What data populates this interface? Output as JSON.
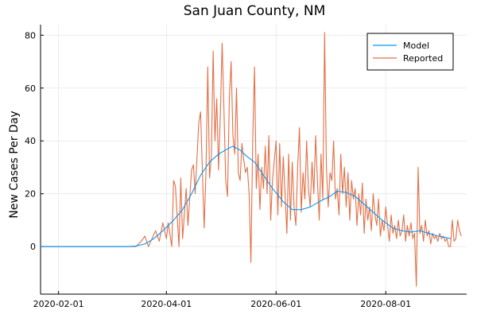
{
  "chart_data": {
    "type": "line",
    "title": "San Juan County, NM",
    "xlabel": "",
    "ylabel": "New Cases Per Day",
    "xlim": [
      "2020-01-22",
      "2020-09-15"
    ],
    "ylim": [
      -18,
      84
    ],
    "x_ticks": [
      "2020-02-01",
      "2020-04-01",
      "2020-06-01",
      "2020-08-01"
    ],
    "y_ticks": [
      0,
      20,
      40,
      60,
      80
    ],
    "grid": true,
    "legend_position": "top-right",
    "series": [
      {
        "name": "Model",
        "color": "#009AFA",
        "points": [
          [
            "2020-01-22",
            0
          ],
          [
            "2020-02-15",
            0
          ],
          [
            "2020-03-10",
            0
          ],
          [
            "2020-03-15",
            0.2
          ],
          [
            "2020-03-20",
            1
          ],
          [
            "2020-03-25",
            3
          ],
          [
            "2020-03-30",
            6
          ],
          [
            "2020-04-05",
            10
          ],
          [
            "2020-04-10",
            14
          ],
          [
            "2020-04-15",
            20
          ],
          [
            "2020-04-20",
            27
          ],
          [
            "2020-04-25",
            32
          ],
          [
            "2020-04-30",
            35
          ],
          [
            "2020-05-05",
            37
          ],
          [
            "2020-05-08",
            38
          ],
          [
            "2020-05-12",
            36.5
          ],
          [
            "2020-05-16",
            34
          ],
          [
            "2020-05-20",
            32
          ],
          [
            "2020-05-25",
            27
          ],
          [
            "2020-05-30",
            22
          ],
          [
            "2020-06-05",
            17
          ],
          [
            "2020-06-10",
            14
          ],
          [
            "2020-06-15",
            14
          ],
          [
            "2020-06-20",
            15
          ],
          [
            "2020-06-25",
            17
          ],
          [
            "2020-07-01",
            19
          ],
          [
            "2020-07-05",
            21
          ],
          [
            "2020-07-10",
            20.5
          ],
          [
            "2020-07-15",
            19
          ],
          [
            "2020-07-20",
            16
          ],
          [
            "2020-07-25",
            13
          ],
          [
            "2020-07-30",
            10
          ],
          [
            "2020-08-05",
            7
          ],
          [
            "2020-08-10",
            6
          ],
          [
            "2020-08-15",
            5.5
          ],
          [
            "2020-08-20",
            6
          ],
          [
            "2020-08-25",
            5
          ],
          [
            "2020-08-30",
            4
          ],
          [
            "2020-09-03",
            3.5
          ],
          [
            "2020-09-06",
            3
          ]
        ]
      },
      {
        "name": "Reported",
        "color": "#E26F46",
        "points": [
          [
            "2020-01-22",
            0
          ],
          [
            "2020-03-15",
            0
          ],
          [
            "2020-03-18",
            2
          ],
          [
            "2020-03-20",
            4
          ],
          [
            "2020-03-22",
            0
          ],
          [
            "2020-03-24",
            3
          ],
          [
            "2020-03-26",
            6
          ],
          [
            "2020-03-28",
            2
          ],
          [
            "2020-03-30",
            9
          ],
          [
            "2020-04-01",
            3
          ],
          [
            "2020-04-02",
            9
          ],
          [
            "2020-04-04",
            0
          ],
          [
            "2020-04-05",
            25
          ],
          [
            "2020-04-06",
            23
          ],
          [
            "2020-04-08",
            0
          ],
          [
            "2020-04-09",
            26
          ],
          [
            "2020-04-10",
            3
          ],
          [
            "2020-04-12",
            22
          ],
          [
            "2020-04-13",
            8
          ],
          [
            "2020-04-15",
            29
          ],
          [
            "2020-04-16",
            31
          ],
          [
            "2020-04-17",
            20
          ],
          [
            "2020-04-19",
            47
          ],
          [
            "2020-04-20",
            51
          ],
          [
            "2020-04-21",
            29
          ],
          [
            "2020-04-22",
            7
          ],
          [
            "2020-04-23",
            28
          ],
          [
            "2020-04-24",
            68
          ],
          [
            "2020-04-25",
            26
          ],
          [
            "2020-04-26",
            34
          ],
          [
            "2020-04-27",
            74
          ],
          [
            "2020-04-28",
            40
          ],
          [
            "2020-04-29",
            56
          ],
          [
            "2020-04-30",
            29
          ],
          [
            "2020-05-01",
            50
          ],
          [
            "2020-05-02",
            77
          ],
          [
            "2020-05-03",
            52
          ],
          [
            "2020-05-04",
            25
          ],
          [
            "2020-05-05",
            19
          ],
          [
            "2020-05-06",
            56
          ],
          [
            "2020-05-07",
            70
          ],
          [
            "2020-05-08",
            42
          ],
          [
            "2020-05-09",
            35
          ],
          [
            "2020-05-10",
            60
          ],
          [
            "2020-05-11",
            28
          ],
          [
            "2020-05-12",
            25
          ],
          [
            "2020-05-13",
            39
          ],
          [
            "2020-05-14",
            33
          ],
          [
            "2020-05-15",
            28
          ],
          [
            "2020-05-16",
            30
          ],
          [
            "2020-05-17",
            20
          ],
          [
            "2020-05-18",
            -6
          ],
          [
            "2020-05-19",
            40
          ],
          [
            "2020-05-20",
            68
          ],
          [
            "2020-05-21",
            22
          ],
          [
            "2020-05-22",
            35
          ],
          [
            "2020-05-23",
            14
          ],
          [
            "2020-05-24",
            30
          ],
          [
            "2020-05-25",
            22
          ],
          [
            "2020-05-26",
            38
          ],
          [
            "2020-05-27",
            20
          ],
          [
            "2020-05-28",
            42
          ],
          [
            "2020-05-29",
            10
          ],
          [
            "2020-05-30",
            25
          ],
          [
            "2020-06-01",
            40
          ],
          [
            "2020-06-02",
            12
          ],
          [
            "2020-06-03",
            39
          ],
          [
            "2020-06-04",
            15
          ],
          [
            "2020-06-05",
            34
          ],
          [
            "2020-06-06",
            20
          ],
          [
            "2020-06-07",
            5
          ],
          [
            "2020-06-08",
            35
          ],
          [
            "2020-06-09",
            10
          ],
          [
            "2020-06-10",
            32
          ],
          [
            "2020-06-11",
            15
          ],
          [
            "2020-06-12",
            8
          ],
          [
            "2020-06-13",
            30
          ],
          [
            "2020-06-14",
            45
          ],
          [
            "2020-06-15",
            13
          ],
          [
            "2020-06-16",
            28
          ],
          [
            "2020-06-17",
            18
          ],
          [
            "2020-06-18",
            40
          ],
          [
            "2020-06-19",
            22
          ],
          [
            "2020-06-20",
            15
          ],
          [
            "2020-06-21",
            32
          ],
          [
            "2020-06-22",
            20
          ],
          [
            "2020-06-23",
            42
          ],
          [
            "2020-06-24",
            25
          ],
          [
            "2020-06-25",
            10
          ],
          [
            "2020-06-26",
            35
          ],
          [
            "2020-06-27",
            18
          ],
          [
            "2020-06-28",
            81
          ],
          [
            "2020-06-29",
            30
          ],
          [
            "2020-06-30",
            15
          ],
          [
            "2020-07-01",
            28
          ],
          [
            "2020-07-02",
            25
          ],
          [
            "2020-07-03",
            40
          ],
          [
            "2020-07-04",
            18
          ],
          [
            "2020-07-05",
            22
          ],
          [
            "2020-07-06",
            12
          ],
          [
            "2020-07-07",
            35
          ],
          [
            "2020-07-08",
            20
          ],
          [
            "2020-07-09",
            30
          ],
          [
            "2020-07-10",
            15
          ],
          [
            "2020-07-11",
            28
          ],
          [
            "2020-07-12",
            10
          ],
          [
            "2020-07-13",
            25
          ],
          [
            "2020-07-14",
            18
          ],
          [
            "2020-07-15",
            22
          ],
          [
            "2020-07-16",
            8
          ],
          [
            "2020-07-17",
            20
          ],
          [
            "2020-07-18",
            12
          ],
          [
            "2020-07-19",
            24
          ],
          [
            "2020-07-20",
            5
          ],
          [
            "2020-07-21",
            18
          ],
          [
            "2020-07-22",
            10
          ],
          [
            "2020-07-23",
            15
          ],
          [
            "2020-07-24",
            6
          ],
          [
            "2020-07-25",
            20
          ],
          [
            "2020-07-26",
            12
          ],
          [
            "2020-07-27",
            8
          ],
          [
            "2020-07-28",
            18
          ],
          [
            "2020-07-29",
            4
          ],
          [
            "2020-07-30",
            10
          ],
          [
            "2020-07-31",
            6
          ],
          [
            "2020-08-01",
            15
          ],
          [
            "2020-08-02",
            8
          ],
          [
            "2020-08-03",
            2
          ],
          [
            "2020-08-04",
            12
          ],
          [
            "2020-08-05",
            5
          ],
          [
            "2020-08-06",
            8
          ],
          [
            "2020-08-07",
            3
          ],
          [
            "2020-08-08",
            10
          ],
          [
            "2020-08-09",
            4
          ],
          [
            "2020-08-10",
            6
          ],
          [
            "2020-08-11",
            12
          ],
          [
            "2020-08-12",
            2
          ],
          [
            "2020-08-13",
            8
          ],
          [
            "2020-08-14",
            4
          ],
          [
            "2020-08-15",
            9
          ],
          [
            "2020-08-16",
            3
          ],
          [
            "2020-08-17",
            5
          ],
          [
            "2020-08-18",
            -15
          ],
          [
            "2020-08-19",
            30
          ],
          [
            "2020-08-20",
            5
          ],
          [
            "2020-08-21",
            8
          ],
          [
            "2020-08-22",
            2
          ],
          [
            "2020-08-23",
            10
          ],
          [
            "2020-08-24",
            4
          ],
          [
            "2020-08-25",
            6
          ],
          [
            "2020-08-26",
            1
          ],
          [
            "2020-08-27",
            5
          ],
          [
            "2020-08-28",
            3
          ],
          [
            "2020-08-29",
            4
          ],
          [
            "2020-08-30",
            2
          ],
          [
            "2020-08-31",
            5
          ],
          [
            "2020-09-01",
            3
          ],
          [
            "2020-09-02",
            4
          ],
          [
            "2020-09-03",
            2
          ],
          [
            "2020-09-04",
            3
          ],
          [
            "2020-09-05",
            0
          ],
          [
            "2020-09-06",
            0
          ],
          [
            "2020-09-07",
            10
          ],
          [
            "2020-09-08",
            2
          ],
          [
            "2020-09-09",
            3
          ],
          [
            "2020-09-10",
            10
          ],
          [
            "2020-09-11",
            6
          ],
          [
            "2020-09-12",
            4
          ]
        ]
      }
    ]
  }
}
